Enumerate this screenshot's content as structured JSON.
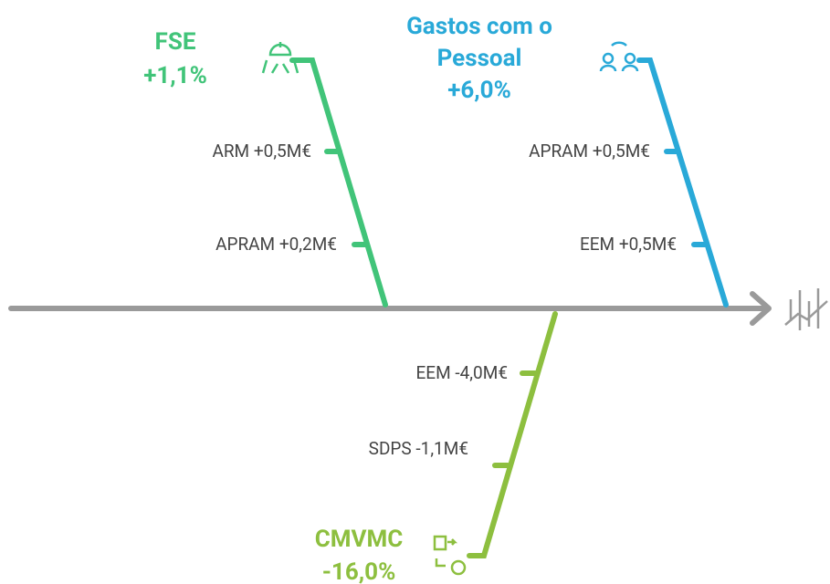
{
  "branches": [
    {
      "title": [
        "FSE"
      ],
      "change": "+1,1%",
      "items": [
        "ARM +0,5M€",
        "APRAM +0,2M€"
      ]
    },
    {
      "title": [
        "Gastos com o",
        "Pessoal"
      ],
      "change": "+6,0%",
      "items": [
        "APRAM +0,5M€",
        "EEM +0,5M€"
      ]
    },
    {
      "title": [
        "CMVMC"
      ],
      "change": "-16,0%",
      "items": [
        "EEM -4,0M€",
        "SDPS -1,1M€"
      ]
    }
  ]
}
